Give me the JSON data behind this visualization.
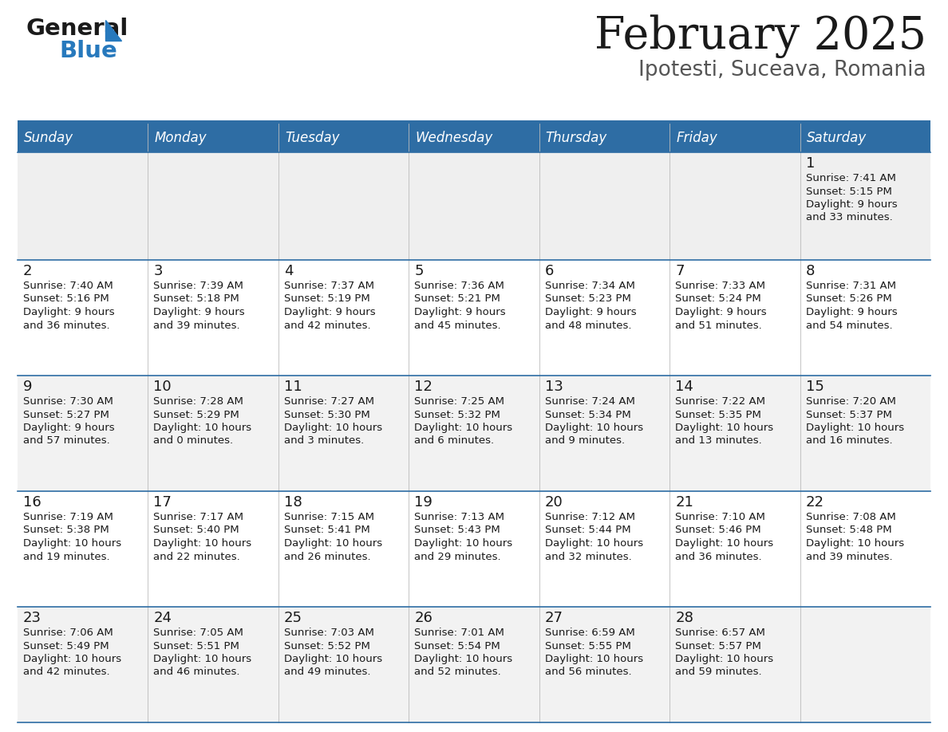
{
  "title": "February 2025",
  "subtitle": "Ipotesti, Suceava, Romania",
  "header_bg": "#2E6DA4",
  "header_text_color": "#FFFFFF",
  "cell_bg_row0": "#EFEFEF",
  "cell_bg_odd": "#F2F2F2",
  "cell_bg_even": "#FFFFFF",
  "border_color": "#2E6DA4",
  "text_color": "#1a1a1a",
  "day_headers": [
    "Sunday",
    "Monday",
    "Tuesday",
    "Wednesday",
    "Thursday",
    "Friday",
    "Saturday"
  ],
  "days_data": [
    {
      "day": 1,
      "col": 6,
      "row": 0,
      "sunrise": "7:41 AM",
      "sunset": "5:15 PM",
      "daylight_h": "9 hours",
      "daylight_m": "33 minutes."
    },
    {
      "day": 2,
      "col": 0,
      "row": 1,
      "sunrise": "7:40 AM",
      "sunset": "5:16 PM",
      "daylight_h": "9 hours",
      "daylight_m": "36 minutes."
    },
    {
      "day": 3,
      "col": 1,
      "row": 1,
      "sunrise": "7:39 AM",
      "sunset": "5:18 PM",
      "daylight_h": "9 hours",
      "daylight_m": "39 minutes."
    },
    {
      "day": 4,
      "col": 2,
      "row": 1,
      "sunrise": "7:37 AM",
      "sunset": "5:19 PM",
      "daylight_h": "9 hours",
      "daylight_m": "42 minutes."
    },
    {
      "day": 5,
      "col": 3,
      "row": 1,
      "sunrise": "7:36 AM",
      "sunset": "5:21 PM",
      "daylight_h": "9 hours",
      "daylight_m": "45 minutes."
    },
    {
      "day": 6,
      "col": 4,
      "row": 1,
      "sunrise": "7:34 AM",
      "sunset": "5:23 PM",
      "daylight_h": "9 hours",
      "daylight_m": "48 minutes."
    },
    {
      "day": 7,
      "col": 5,
      "row": 1,
      "sunrise": "7:33 AM",
      "sunset": "5:24 PM",
      "daylight_h": "9 hours",
      "daylight_m": "51 minutes."
    },
    {
      "day": 8,
      "col": 6,
      "row": 1,
      "sunrise": "7:31 AM",
      "sunset": "5:26 PM",
      "daylight_h": "9 hours",
      "daylight_m": "54 minutes."
    },
    {
      "day": 9,
      "col": 0,
      "row": 2,
      "sunrise": "7:30 AM",
      "sunset": "5:27 PM",
      "daylight_h": "9 hours",
      "daylight_m": "57 minutes."
    },
    {
      "day": 10,
      "col": 1,
      "row": 2,
      "sunrise": "7:28 AM",
      "sunset": "5:29 PM",
      "daylight_h": "10 hours",
      "daylight_m": "0 minutes."
    },
    {
      "day": 11,
      "col": 2,
      "row": 2,
      "sunrise": "7:27 AM",
      "sunset": "5:30 PM",
      "daylight_h": "10 hours",
      "daylight_m": "3 minutes."
    },
    {
      "day": 12,
      "col": 3,
      "row": 2,
      "sunrise": "7:25 AM",
      "sunset": "5:32 PM",
      "daylight_h": "10 hours",
      "daylight_m": "6 minutes."
    },
    {
      "day": 13,
      "col": 4,
      "row": 2,
      "sunrise": "7:24 AM",
      "sunset": "5:34 PM",
      "daylight_h": "10 hours",
      "daylight_m": "9 minutes."
    },
    {
      "day": 14,
      "col": 5,
      "row": 2,
      "sunrise": "7:22 AM",
      "sunset": "5:35 PM",
      "daylight_h": "10 hours",
      "daylight_m": "13 minutes."
    },
    {
      "day": 15,
      "col": 6,
      "row": 2,
      "sunrise": "7:20 AM",
      "sunset": "5:37 PM",
      "daylight_h": "10 hours",
      "daylight_m": "16 minutes."
    },
    {
      "day": 16,
      "col": 0,
      "row": 3,
      "sunrise": "7:19 AM",
      "sunset": "5:38 PM",
      "daylight_h": "10 hours",
      "daylight_m": "19 minutes."
    },
    {
      "day": 17,
      "col": 1,
      "row": 3,
      "sunrise": "7:17 AM",
      "sunset": "5:40 PM",
      "daylight_h": "10 hours",
      "daylight_m": "22 minutes."
    },
    {
      "day": 18,
      "col": 2,
      "row": 3,
      "sunrise": "7:15 AM",
      "sunset": "5:41 PM",
      "daylight_h": "10 hours",
      "daylight_m": "26 minutes."
    },
    {
      "day": 19,
      "col": 3,
      "row": 3,
      "sunrise": "7:13 AM",
      "sunset": "5:43 PM",
      "daylight_h": "10 hours",
      "daylight_m": "29 minutes."
    },
    {
      "day": 20,
      "col": 4,
      "row": 3,
      "sunrise": "7:12 AM",
      "sunset": "5:44 PM",
      "daylight_h": "10 hours",
      "daylight_m": "32 minutes."
    },
    {
      "day": 21,
      "col": 5,
      "row": 3,
      "sunrise": "7:10 AM",
      "sunset": "5:46 PM",
      "daylight_h": "10 hours",
      "daylight_m": "36 minutes."
    },
    {
      "day": 22,
      "col": 6,
      "row": 3,
      "sunrise": "7:08 AM",
      "sunset": "5:48 PM",
      "daylight_h": "10 hours",
      "daylight_m": "39 minutes."
    },
    {
      "day": 23,
      "col": 0,
      "row": 4,
      "sunrise": "7:06 AM",
      "sunset": "5:49 PM",
      "daylight_h": "10 hours",
      "daylight_m": "42 minutes."
    },
    {
      "day": 24,
      "col": 1,
      "row": 4,
      "sunrise": "7:05 AM",
      "sunset": "5:51 PM",
      "daylight_h": "10 hours",
      "daylight_m": "46 minutes."
    },
    {
      "day": 25,
      "col": 2,
      "row": 4,
      "sunrise": "7:03 AM",
      "sunset": "5:52 PM",
      "daylight_h": "10 hours",
      "daylight_m": "49 minutes."
    },
    {
      "day": 26,
      "col": 3,
      "row": 4,
      "sunrise": "7:01 AM",
      "sunset": "5:54 PM",
      "daylight_h": "10 hours",
      "daylight_m": "52 minutes."
    },
    {
      "day": 27,
      "col": 4,
      "row": 4,
      "sunrise": "6:59 AM",
      "sunset": "5:55 PM",
      "daylight_h": "10 hours",
      "daylight_m": "56 minutes."
    },
    {
      "day": 28,
      "col": 5,
      "row": 4,
      "sunrise": "6:57 AM",
      "sunset": "5:57 PM",
      "daylight_h": "10 hours",
      "daylight_m": "59 minutes."
    }
  ],
  "logo_general_color": "#1a1a1a",
  "logo_blue_color": "#2779BD",
  "logo_triangle_color": "#2779BD"
}
